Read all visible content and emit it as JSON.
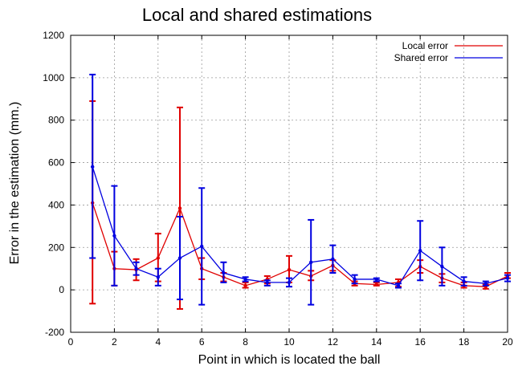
{
  "chart_data": {
    "type": "line",
    "title": "Local and shared estimations",
    "xlabel": "Point in which is located the ball",
    "ylabel": "Error in the estimation (mm.)",
    "xlim": [
      0,
      20
    ],
    "ylim": [
      -200,
      1200
    ],
    "xticks": [
      0,
      2,
      4,
      6,
      8,
      10,
      12,
      14,
      16,
      18,
      20
    ],
    "yticks": [
      -200,
      0,
      200,
      400,
      600,
      800,
      1000,
      1200
    ],
    "grid": true,
    "legend_position": "top-right",
    "series": [
      {
        "name": "Local error",
        "color": "#e00000",
        "x": [
          1,
          2,
          3,
          4,
          5,
          6,
          7,
          8,
          9,
          10,
          11,
          12,
          13,
          14,
          15,
          16,
          17,
          18,
          19,
          20
        ],
        "y": [
          410,
          100,
          95,
          150,
          385,
          100,
          60,
          20,
          50,
          95,
          65,
          115,
          30,
          25,
          35,
          110,
          55,
          20,
          15,
          65
        ],
        "err_low": [
          -65,
          20,
          45,
          40,
          -90,
          50,
          40,
          10,
          30,
          35,
          45,
          90,
          20,
          20,
          15,
          80,
          35,
          10,
          5,
          55
        ],
        "err_high": [
          890,
          180,
          145,
          265,
          860,
          150,
          80,
          35,
          65,
          160,
          90,
          140,
          40,
          35,
          50,
          140,
          75,
          35,
          25,
          80
        ]
      },
      {
        "name": "Shared error",
        "color": "#0000e0",
        "x": [
          1,
          2,
          3,
          4,
          5,
          6,
          7,
          8,
          9,
          10,
          11,
          12,
          13,
          14,
          15,
          16,
          17,
          18,
          19,
          20
        ],
        "y": [
          580,
          255,
          100,
          60,
          150,
          205,
          80,
          50,
          35,
          35,
          130,
          145,
          50,
          50,
          20,
          185,
          110,
          40,
          30,
          55
        ],
        "err_low": [
          150,
          20,
          70,
          20,
          -45,
          -70,
          35,
          40,
          20,
          15,
          -70,
          80,
          30,
          40,
          10,
          45,
          20,
          20,
          20,
          40
        ],
        "err_high": [
          1015,
          490,
          130,
          100,
          345,
          480,
          130,
          60,
          45,
          55,
          330,
          210,
          70,
          55,
          30,
          325,
          200,
          60,
          40,
          70
        ]
      }
    ]
  }
}
